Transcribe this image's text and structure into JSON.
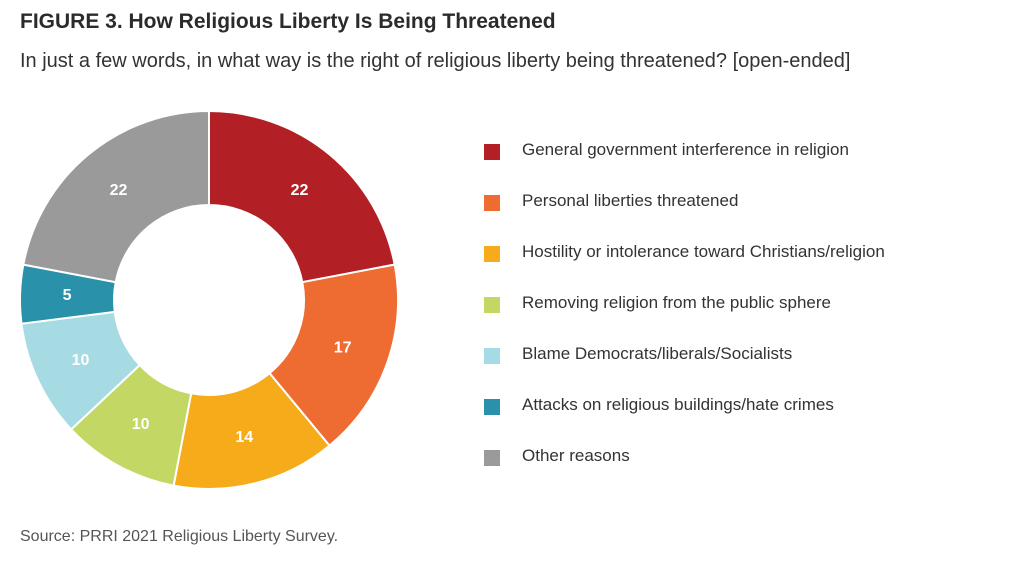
{
  "chart_data": {
    "type": "pie",
    "title": "FIGURE 3. How Religious Liberty Is Being Threatened",
    "subtitle": "In just a few words, in what way is the right of religious liberty being threatened? [open-ended]",
    "source": "Source: PRRI 2021 Religious Liberty Survey.",
    "legend_position": "right",
    "slices": [
      {
        "label": "General government interference in religion",
        "value": 22,
        "color": "#b22026",
        "text_color": "#ffffff"
      },
      {
        "label": "Personal liberties threatened",
        "value": 17,
        "color": "#ee6b32",
        "text_color": "#ffffff"
      },
      {
        "label": "Hostility or intolerance toward Christians/religion",
        "value": 14,
        "color": "#f6ab1a",
        "text_color": "#ffffff"
      },
      {
        "label": "Removing religion from the public sphere",
        "value": 10,
        "color": "#c3d765",
        "text_color": "#ffffff"
      },
      {
        "label": "Blame Democrats/liberals/Socialists",
        "value": 10,
        "color": "#a7dbe4",
        "text_color": "#ffffff"
      },
      {
        "label": "Attacks on religious buildings/hate crimes",
        "value": 5,
        "color": "#2a91ab",
        "text_color": "#ffffff"
      },
      {
        "label": "Other reasons",
        "value": 22,
        "color": "#9a9a9a",
        "text_color": "#ffffff"
      }
    ]
  }
}
